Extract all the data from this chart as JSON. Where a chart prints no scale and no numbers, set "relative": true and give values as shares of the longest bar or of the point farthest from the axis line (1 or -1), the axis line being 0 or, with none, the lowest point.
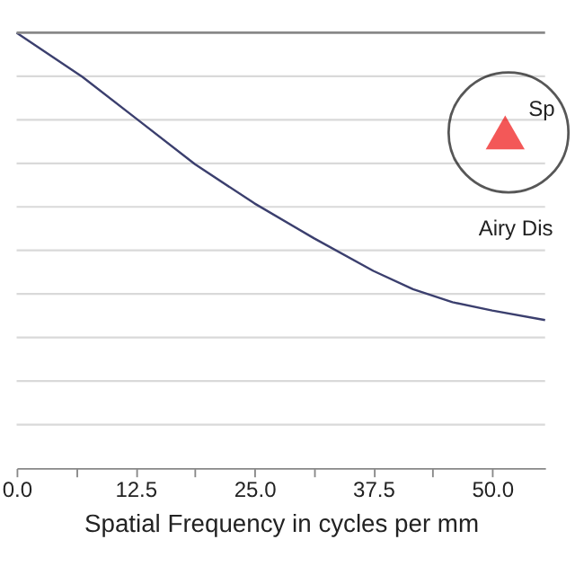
{
  "chart_data": {
    "type": "line",
    "relative": true,
    "xlabel": "Spatial Frequency in cycles per mm",
    "x": [
      0,
      6.94,
      12.5,
      18.75,
      25,
      31.25,
      37.5,
      41.67,
      45.83,
      50,
      55.56
    ],
    "series": [
      {
        "color": "#3b3f6e",
        "values": [
          1.0,
          0.898,
          0.804,
          0.698,
          0.608,
          0.528,
          0.453,
          0.411,
          0.381,
          0.362,
          0.34
        ]
      }
    ],
    "xlim": [
      0,
      55.56
    ],
    "xticks": [
      {
        "value": 0,
        "label": "0.0"
      },
      {
        "value": 6.25,
        "label": null
      },
      {
        "value": 12.5,
        "label": "12.5"
      },
      {
        "value": 18.75,
        "label": null
      },
      {
        "value": 25,
        "label": "25.0"
      },
      {
        "value": 31.25,
        "label": null
      },
      {
        "value": 37.5,
        "label": "37.5"
      },
      {
        "value": 43.75,
        "label": null
      },
      {
        "value": 50,
        "label": "50.0"
      }
    ],
    "grid": "y",
    "tick_labels": "x",
    "marker": "none",
    "line_style": "solid",
    "annotations": [
      "Sp",
      "Airy Dis"
    ]
  }
}
